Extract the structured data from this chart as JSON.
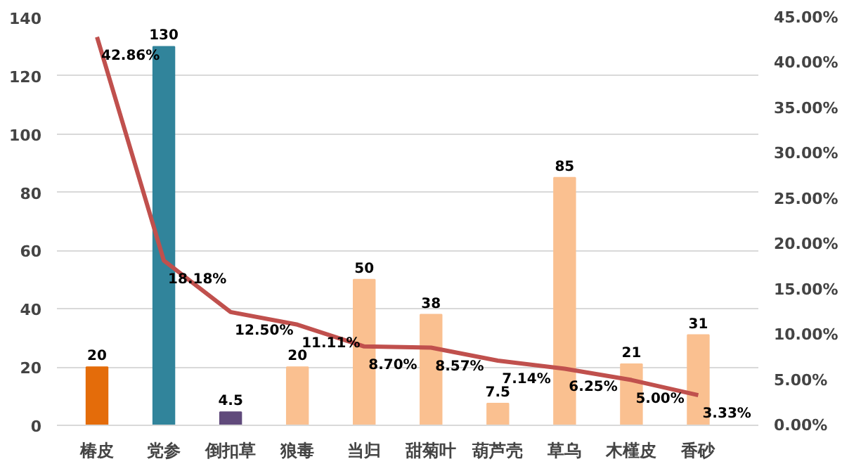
{
  "chart_data": {
    "type": "bar",
    "categories": [
      "椿皮",
      "党参",
      "倒扣草",
      "狼毒",
      "当归",
      "甜菊叶",
      "葫芦壳",
      "草乌",
      "木槿皮",
      "香砂"
    ],
    "series": [
      {
        "colors": [
          "#e46c0a",
          "#31849b",
          "#604a7b",
          "#fac090",
          "#fac090",
          "#fac090",
          "#fac090",
          "#fac090",
          "#fac090",
          "#fac090"
        ],
        "values": [
          20,
          130,
          4.5,
          20,
          50,
          38,
          7.5,
          85,
          21,
          31
        ],
        "value_labels": [
          "20",
          "130",
          "4.5",
          "20",
          "50",
          "38",
          "7.5",
          "85",
          "21",
          "31"
        ]
      },
      {
        "type": "line",
        "axis": "y2",
        "color": "#c0504d",
        "values": [
          42.86,
          18.18,
          12.5,
          11.11,
          8.7,
          8.57,
          7.14,
          6.25,
          5.0,
          3.33
        ],
        "value_labels": [
          "42.86%",
          "18.18%",
          "12.50%",
          "11.11%",
          "8.70%",
          "8.57%",
          "7.14%",
          "6.25%",
          "5.00%",
          "3.33%"
        ]
      }
    ],
    "ylim": [
      0,
      140
    ],
    "yticks": [
      0,
      20,
      40,
      60,
      80,
      100,
      120,
      140
    ],
    "y2lim": [
      0,
      45
    ],
    "y2ticks": [
      {
        "value": 0,
        "label": "0.00%"
      },
      {
        "value": 5,
        "label": "5.00%"
      },
      {
        "value": 10,
        "label": "10.00%"
      },
      {
        "value": 15,
        "label": "15.00%"
      },
      {
        "value": 20,
        "label": "20.00%"
      },
      {
        "value": 25,
        "label": "25.00%"
      },
      {
        "value": 30,
        "label": "30.00%"
      },
      {
        "value": 35,
        "label": "35.00%"
      },
      {
        "value": 40,
        "label": "40.00%"
      },
      {
        "value": 45,
        "label": "45.00%"
      }
    ],
    "grid": "y"
  }
}
